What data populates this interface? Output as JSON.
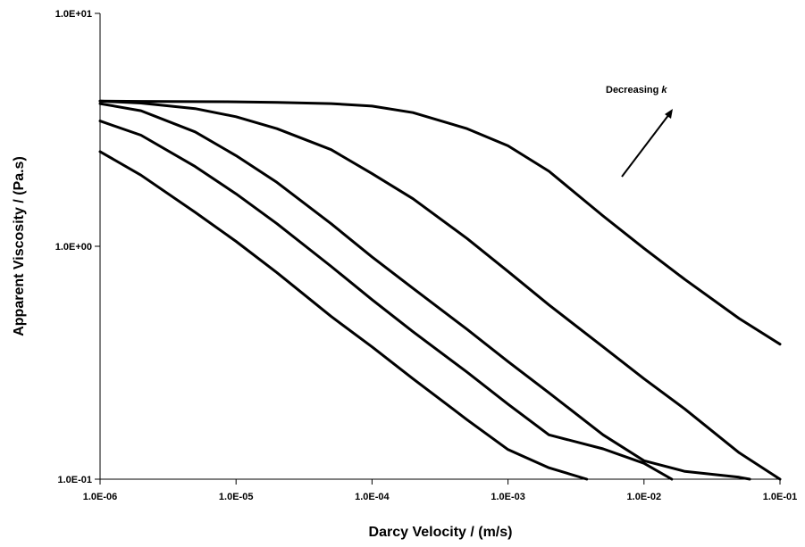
{
  "chart_data": {
    "type": "line",
    "xlabel": "Darcy Velocity / (m/s)",
    "ylabel": "Apparent Viscosity / (Pa.s)",
    "x_scale": "log",
    "y_scale": "log",
    "xlim": [
      1e-06,
      0.1
    ],
    "ylim": [
      0.1,
      10
    ],
    "x_ticks": [
      1e-06,
      1e-05,
      0.0001,
      0.001,
      0.01,
      0.1
    ],
    "x_tick_labels": [
      "1.0E-06",
      "1.0E-05",
      "1.0E-04",
      "1.0E-03",
      "1.0E-02",
      "1.0E-01"
    ],
    "y_ticks": [
      0.1,
      1,
      10
    ],
    "y_tick_labels": [
      "1.0E-01",
      "1.0E+00",
      "1.0E+01"
    ],
    "grid": false,
    "legend": false,
    "line_color": "#000000",
    "annotation": {
      "text": "Decreasing ",
      "text_italic": "k",
      "arrow": true
    },
    "series": [
      {
        "x": [
          1e-06,
          2e-06,
          5e-06,
          1e-05,
          2e-05,
          5e-05,
          0.0001,
          0.0002,
          0.0005,
          0.001,
          0.002,
          0.005,
          0.01,
          0.02,
          0.05,
          0.1
        ],
        "y": [
          4.2,
          4.19,
          4.18,
          4.17,
          4.15,
          4.1,
          4.0,
          3.75,
          3.2,
          2.7,
          2.1,
          1.35,
          0.98,
          0.72,
          0.49,
          0.38
        ]
      },
      {
        "x": [
          1e-06,
          2e-06,
          5e-06,
          1e-05,
          2e-05,
          5e-05,
          0.0001,
          0.0002,
          0.0005,
          0.001,
          0.002,
          0.005,
          0.01,
          0.02,
          0.05,
          0.1
        ],
        "y": [
          4.2,
          4.12,
          3.9,
          3.6,
          3.2,
          2.6,
          2.05,
          1.6,
          1.08,
          0.78,
          0.56,
          0.37,
          0.27,
          0.2,
          0.13,
          0.1
        ]
      },
      {
        "x": [
          1e-06,
          2e-06,
          5e-06,
          1e-05,
          2e-05,
          5e-05,
          0.0001,
          0.0002,
          0.0005,
          0.001,
          0.002,
          0.005,
          0.01,
          0.02,
          0.05,
          0.06
        ],
        "y": [
          4.1,
          3.82,
          3.1,
          2.45,
          1.88,
          1.25,
          0.9,
          0.66,
          0.44,
          0.32,
          0.235,
          0.155,
          0.12,
          0.108,
          0.102,
          0.1
        ]
      },
      {
        "x": [
          1e-06,
          2e-06,
          5e-06,
          1e-05,
          2e-05,
          5e-05,
          0.0001,
          0.0002,
          0.0005,
          0.001,
          0.002,
          0.005,
          0.01,
          0.016
        ],
        "y": [
          3.45,
          3.0,
          2.2,
          1.68,
          1.25,
          0.82,
          0.59,
          0.43,
          0.288,
          0.21,
          0.155,
          0.135,
          0.117,
          0.1
        ]
      },
      {
        "x": [
          1e-06,
          2e-06,
          5e-06,
          1e-05,
          2e-05,
          5e-05,
          0.0001,
          0.0002,
          0.0005,
          0.001,
          0.002,
          0.0038
        ],
        "y": [
          2.55,
          2.02,
          1.4,
          1.05,
          0.77,
          0.5,
          0.37,
          0.27,
          0.18,
          0.134,
          0.112,
          0.1
        ]
      }
    ]
  }
}
